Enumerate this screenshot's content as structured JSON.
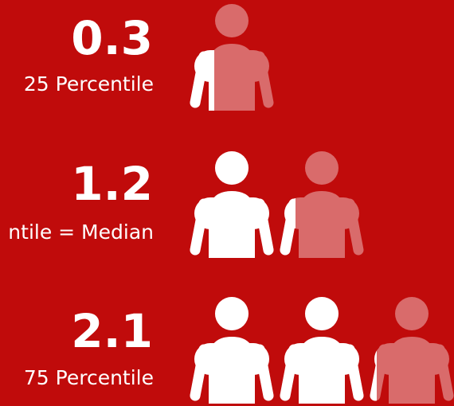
{
  "chart_data": {
    "type": "pictogram",
    "categories": [
      "25 Percentile",
      "ntile = Median",
      "75 Percentile"
    ],
    "values": [
      0.3,
      1.2,
      2.1
    ],
    "color": "#ffffff",
    "empty_color": "#d96b6b"
  }
}
